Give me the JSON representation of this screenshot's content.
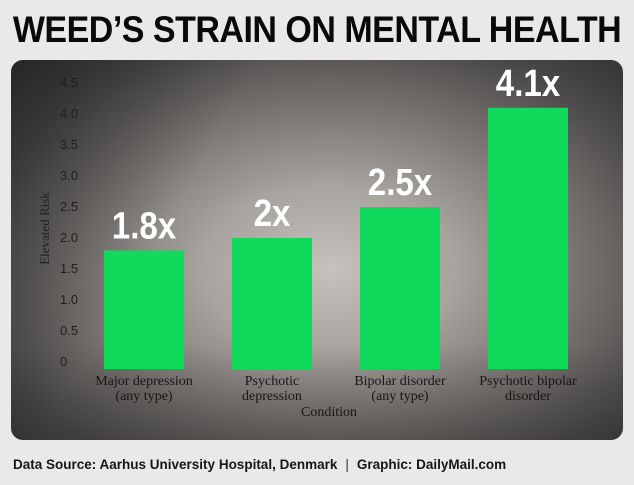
{
  "headline": "WEED’S STRAIN ON MENTAL HEALTH",
  "footer": {
    "source": "Data Source: Aarhus University Hospital, Denmark",
    "separator": "|",
    "credit": "Graphic: DailyMail.com"
  },
  "colors": {
    "bar": "#10d95c",
    "panel": "#8a8784",
    "text_dark": "#1a1a1a",
    "label_white": "#ffffff"
  },
  "chart_data": {
    "type": "bar",
    "categories": [
      [
        "Major depression",
        "(any type)"
      ],
      [
        "Psychotic",
        "depression"
      ],
      [
        "Bipolar disorder",
        "(any type)"
      ],
      [
        "Psychotic bipolar",
        "disorder"
      ]
    ],
    "values": [
      1.8,
      2.0,
      2.5,
      4.1
    ],
    "data_labels": [
      "1.8x",
      "2x",
      "2.5x",
      "4.1x"
    ],
    "xlabel": "Condition",
    "ylabel": "Elevated Risk",
    "ylim": [
      0,
      4.5
    ],
    "yticks": [
      "0",
      "0.5",
      "1.0",
      "1.5",
      "2.0",
      "2.5",
      "3.0",
      "3.5",
      "4.0",
      "4.5"
    ],
    "grid": false,
    "legend": "none"
  }
}
